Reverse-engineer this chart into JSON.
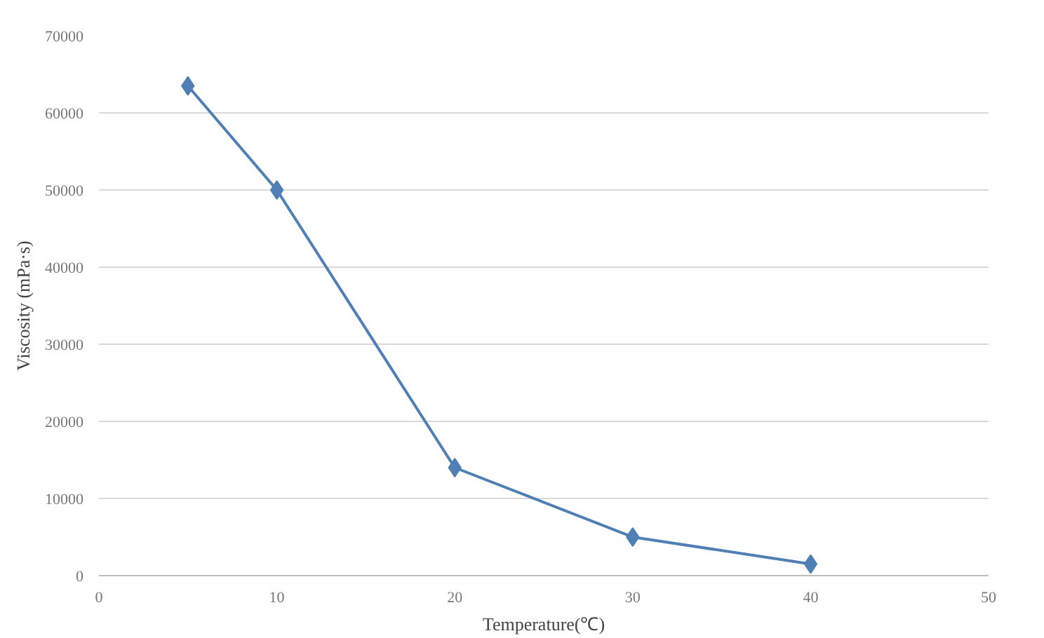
{
  "chart_data": {
    "type": "line",
    "xlabel": "Temperature(℃)",
    "ylabel": "Viscosity (mPa·s)",
    "x": [
      5,
      10,
      20,
      30,
      40
    ],
    "series": [
      {
        "color": "#4f7fb5",
        "values": [
          63500,
          50000,
          14000,
          5000,
          1500
        ]
      }
    ],
    "xlim": [
      0,
      50
    ],
    "xticks": [
      0,
      10,
      20,
      30,
      40,
      50
    ],
    "ylim": [
      0,
      70000
    ],
    "yticks": [
      0,
      10000,
      20000,
      30000,
      40000,
      50000,
      60000,
      70000
    ],
    "grid": "y",
    "marker": "diamond",
    "line_style": "solid"
  }
}
